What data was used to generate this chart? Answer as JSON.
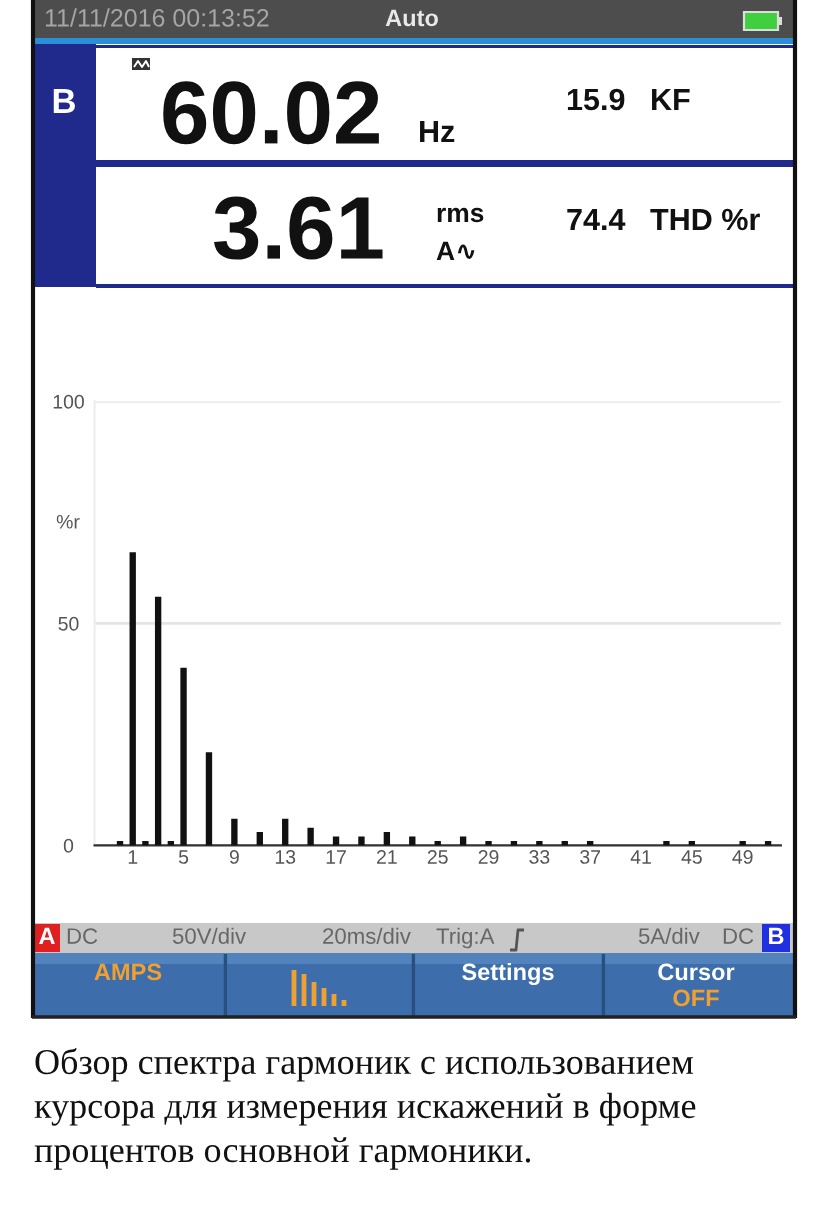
{
  "chart_data": {
    "type": "bar",
    "x": [
      0,
      1,
      2,
      3,
      4,
      5,
      7,
      9,
      11,
      13,
      15,
      17,
      19,
      21,
      23,
      25,
      27,
      29,
      31,
      33,
      35,
      37,
      43,
      45,
      49,
      51
    ],
    "values": [
      1,
      66,
      1,
      56,
      1,
      40,
      21,
      6,
      3,
      6,
      4,
      2,
      2,
      3,
      2,
      1,
      2,
      1,
      1,
      1,
      1,
      1,
      1,
      1,
      1,
      1
    ],
    "color": "#111111",
    "xlim": [
      -2,
      52
    ],
    "xticks": [
      1,
      5,
      9,
      13,
      17,
      21,
      25,
      29,
      33,
      37,
      41,
      45,
      49
    ],
    "ylim": [
      0,
      100
    ],
    "yticks": [
      0,
      50,
      100
    ],
    "ylabel": "%r",
    "grid": "y",
    "annotations": [
      "11/11/2016 00:13:52",
      "Auto",
      "B",
      "60.02",
      "Hz",
      "15.9",
      "KF",
      "3.61",
      "rms",
      "A∿",
      "74.4",
      "THD %r",
      "A",
      "DC",
      "50V/div",
      "20ms/div",
      "Trig:A",
      "5A/div",
      "DC",
      "B",
      "AMPS",
      "Settings",
      "Cursor",
      "OFF",
      "Обзор спектра гармоник с использованием курсора для измерения искажений в форме процентов основной гармоники."
    ]
  }
}
